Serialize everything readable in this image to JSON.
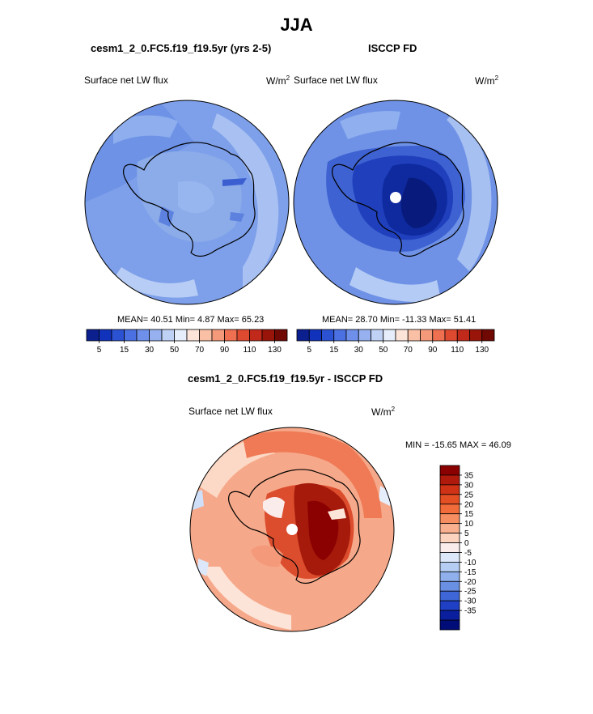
{
  "title": "JJA",
  "panels": {
    "model": {
      "title": "cesm1_2_0.FC5.f19_f19.5yr (yrs 2-5)",
      "variable": "Surface net LW flux",
      "units_base": "W/m",
      "units_exp": "2",
      "stats": "MEAN=  40.51  Min=   4.87  Max=  65.23"
    },
    "obs": {
      "title": "ISCCP FD",
      "variable": "Surface net LW flux",
      "units_base": "W/m",
      "units_exp": "2",
      "stats": "MEAN=  28.70  Min= -11.33  Max=  51.41"
    },
    "diff": {
      "title": "cesm1_2_0.FC5.f19_f19.5yr - ISCCP FD",
      "variable": "Surface net LW flux",
      "units_base": "W/m",
      "units_exp": "2",
      "stats": "MIN = -15.65 MAX =  46.09"
    }
  },
  "chart_data": [
    {
      "type": "heatmap",
      "projection": "south-polar-stereographic",
      "title": "cesm1_2_0.FC5.f19_f19.5yr (yrs 2-5)",
      "variable": "Surface net LW flux",
      "units": "W/m2",
      "stats": {
        "mean": 40.51,
        "min": 4.87,
        "max": 65.23
      },
      "colorbar": {
        "orientation": "horizontal",
        "labels": [
          "5",
          "15",
          "30",
          "50",
          "70",
          "90",
          "110",
          "130"
        ],
        "colors": [
          "#0b1f8f",
          "#1133bb",
          "#2b52d3",
          "#4a70e1",
          "#6f90ea",
          "#97b1f0",
          "#bfd2f6",
          "#e6eefb",
          "#fde4d8",
          "#f9c0a6",
          "#f49a7a",
          "#ee7050",
          "#de4a2f",
          "#c12a1a",
          "#9a1509",
          "#700804"
        ]
      }
    },
    {
      "type": "heatmap",
      "projection": "south-polar-stereographic",
      "title": "ISCCP FD",
      "variable": "Surface net LW flux",
      "units": "W/m2",
      "stats": {
        "mean": 28.7,
        "min": -11.33,
        "max": 51.41
      },
      "colorbar": {
        "orientation": "horizontal",
        "labels": [
          "5",
          "15",
          "30",
          "50",
          "70",
          "90",
          "110",
          "130"
        ],
        "colors": [
          "#0b1f8f",
          "#1133bb",
          "#2b52d3",
          "#4a70e1",
          "#6f90ea",
          "#97b1f0",
          "#bfd2f6",
          "#e6eefb",
          "#fde4d8",
          "#f9c0a6",
          "#f49a7a",
          "#ee7050",
          "#de4a2f",
          "#c12a1a",
          "#9a1509",
          "#700804"
        ]
      }
    },
    {
      "type": "heatmap",
      "projection": "south-polar-stereographic",
      "title": "cesm1_2_0.FC5.f19_f19.5yr - ISCCP FD",
      "variable": "Surface net LW flux",
      "units": "W/m2",
      "stats": {
        "min": -15.65,
        "max": 46.09
      },
      "colorbar": {
        "orientation": "vertical",
        "labels": [
          "35",
          "30",
          "25",
          "20",
          "15",
          "10",
          "5",
          "0",
          "-5",
          "-10",
          "-15",
          "-20",
          "-25",
          "-30",
          "-35"
        ],
        "colors": [
          "#8b0000",
          "#b01a0c",
          "#cf3215",
          "#e44f24",
          "#f16c3a",
          "#f68e62",
          "#f9b08f",
          "#fcd3be",
          "#fbecec",
          "#dce8f9",
          "#b6cdf3",
          "#8fb0ec",
          "#6a90e3",
          "#3f66d6",
          "#1f3fc4",
          "#0a1f9e",
          "#000c78"
        ]
      }
    }
  ]
}
